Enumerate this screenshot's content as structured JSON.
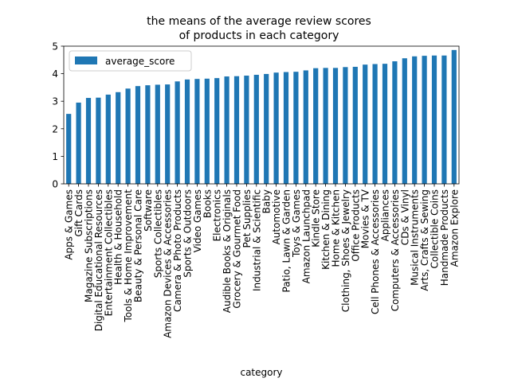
{
  "chart_data": {
    "type": "bar",
    "title": "the means of the average review scores\nof products in each category",
    "xlabel": "category",
    "ylabel": "",
    "ylim": [
      0,
      5
    ],
    "yticks": [
      0,
      1,
      2,
      3,
      4,
      5
    ],
    "grid": false,
    "legend_position": "top-left",
    "color": "#1f77b4",
    "categories": [
      "Apps & Games",
      "Gift Cards",
      "Magazine Subscriptions",
      "Digital Educational Resources",
      "Entertainment Collectibles",
      "Health & Household",
      "Tools & Home Improvement",
      "Beauty & Personal Care",
      "Software",
      "Sports Collectibles",
      "Amazon Devices & Accessories",
      "Camera & Photo Products",
      "Sports & Outdoors",
      "Video Games",
      "Books",
      "Electronics",
      "Audible Books & Originals",
      "Grocery & Gourmet Food",
      "Pet Supplies",
      "Industrial & Scientific",
      "Baby",
      "Automotive",
      "Patio, Lawn & Garden",
      "Toys & Games",
      "Amazon Launchpad",
      "Kindle Store",
      "Kitchen & Dining",
      "Home & Kitchen",
      "Clothing, Shoes & Jewelry",
      "Office Products",
      "Movies & TV",
      "Cell Phones & Accessories",
      "Appliances",
      "Computers & Accessories",
      "CDs & Vinyl",
      "Musical Instruments",
      "Arts, Crafts & Sewing",
      "Collectible Coins",
      "Handmade Products",
      "Amazon Explore"
    ],
    "series": [
      {
        "name": "average_score",
        "values": [
          2.54,
          2.95,
          3.12,
          3.13,
          3.24,
          3.33,
          3.46,
          3.55,
          3.58,
          3.6,
          3.61,
          3.72,
          3.79,
          3.81,
          3.82,
          3.84,
          3.9,
          3.91,
          3.93,
          3.96,
          3.99,
          4.04,
          4.06,
          4.07,
          4.12,
          4.2,
          4.21,
          4.21,
          4.24,
          4.25,
          4.33,
          4.35,
          4.36,
          4.45,
          4.56,
          4.63,
          4.65,
          4.66,
          4.66,
          4.86
        ]
      }
    ]
  }
}
